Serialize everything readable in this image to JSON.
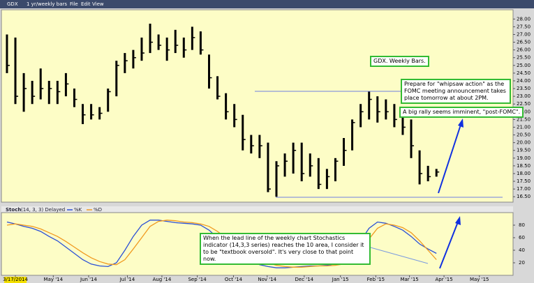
{
  "header": {
    "symbol": "GDX",
    "period": "1 yr/weekly bars",
    "menu": [
      "File",
      "Edit",
      "View"
    ]
  },
  "chart_data": [
    {
      "type": "hlc",
      "color": "#000000",
      "high": [
        27.0,
        26.8,
        24.5,
        24.0,
        24.8,
        24.0,
        24.0,
        24.5,
        23.5,
        22.5,
        22.5,
        22.3,
        23.5,
        25.3,
        25.8,
        26.0,
        26.8,
        27.7,
        27.0,
        26.8,
        27.3,
        26.8,
        27.5,
        27.2,
        25.7,
        24.3,
        23.2,
        22.5,
        21.8,
        20.5,
        20.5,
        20.0,
        18.8,
        19.3,
        20.0,
        20.0,
        19.3,
        19.0,
        18.3,
        19.0,
        20.3,
        21.5,
        22.5,
        23.3,
        23.0,
        22.8,
        22.5,
        22.0,
        21.5,
        19.5,
        18.5,
        18.3
      ],
      "low": [
        24.5,
        22.5,
        22.0,
        22.5,
        22.8,
        22.5,
        22.5,
        23.0,
        22.3,
        21.2,
        21.5,
        21.5,
        22.0,
        23.0,
        24.5,
        24.8,
        25.3,
        25.8,
        26.0,
        25.3,
        25.8,
        25.5,
        26.0,
        25.7,
        23.5,
        22.8,
        21.5,
        21.0,
        19.5,
        19.3,
        19.0,
        16.8,
        16.5,
        17.8,
        18.0,
        17.5,
        17.8,
        17.0,
        17.0,
        17.5,
        18.5,
        19.5,
        21.0,
        21.5,
        21.3,
        21.5,
        21.0,
        20.5,
        19.0,
        17.3,
        17.5,
        17.8
      ],
      "close": [
        25.0,
        23.0,
        23.5,
        23.0,
        23.5,
        23.5,
        23.3,
        23.8,
        22.8,
        21.8,
        21.8,
        21.9,
        23.3,
        25.0,
        25.3,
        25.5,
        25.8,
        26.5,
        26.3,
        26.0,
        26.3,
        26.0,
        26.8,
        26.0,
        24.2,
        23.0,
        22.0,
        21.5,
        20.2,
        19.8,
        19.8,
        17.0,
        18.5,
        18.8,
        19.5,
        18.0,
        18.5,
        17.3,
        17.8,
        18.8,
        19.5,
        21.3,
        22.0,
        22.8,
        22.0,
        22.0,
        21.5,
        21.0,
        19.8,
        18.0,
        17.8,
        18.1
      ],
      "xlim": [
        -0.66,
        60.1
      ],
      "ylim": [
        16.15,
        28.6
      ],
      "yticks": [
        {
          "value": 16.5,
          "label": "16.50"
        },
        {
          "value": 17,
          "label": "17.00"
        },
        {
          "value": 17.5,
          "label": "17.50"
        },
        {
          "value": 18,
          "label": "18.00"
        },
        {
          "value": 18.5,
          "label": "18.50"
        },
        {
          "value": 19,
          "label": "19.00"
        },
        {
          "value": 19.5,
          "label": "19.50"
        },
        {
          "value": 20,
          "label": "20.00"
        },
        {
          "value": 20.5,
          "label": "20.50"
        },
        {
          "value": 21,
          "label": "21.00"
        },
        {
          "value": 21.5,
          "label": "21.50"
        },
        {
          "value": 22,
          "label": "22.00"
        },
        {
          "value": 22.5,
          "label": "22.50"
        },
        {
          "value": 23,
          "label": "23.00"
        },
        {
          "value": 23.5,
          "label": "23.50"
        },
        {
          "value": 24,
          "label": "24.00"
        },
        {
          "value": 24.5,
          "label": "24.50"
        },
        {
          "value": 25,
          "label": "25.00"
        },
        {
          "value": 25.5,
          "label": "25.50"
        },
        {
          "value": 26,
          "label": "26.00"
        },
        {
          "value": 26.5,
          "label": "26.50"
        },
        {
          "value": 27,
          "label": "27.00"
        },
        {
          "value": 27.5,
          "label": "27.50"
        },
        {
          "value": 28,
          "label": "28.00"
        }
      ],
      "annotations": [
        "GDX. Weekly Bars.",
        "Prepare for \"whipsaw action\" as the FOMC meeting announcement takes place tomorrow at about 2PM.",
        "A big rally seems imminent, \"post-FOMC\"."
      ]
    },
    {
      "type": "line",
      "title": "Stoch",
      "subtitle": "(14, 3, 3) Delayed",
      "series": [
        {
          "name": "%K",
          "color": "#2a4fd6",
          "values": [
            85,
            82,
            78,
            75,
            70,
            62,
            55,
            45,
            35,
            25,
            18,
            15,
            14,
            20,
            40,
            62,
            80,
            88,
            88,
            86,
            84,
            83,
            82,
            80,
            72,
            60,
            48,
            38,
            28,
            22,
            17,
            14,
            12,
            12,
            13,
            14,
            15,
            15,
            16,
            18,
            22,
            35,
            55,
            75,
            85,
            83,
            78,
            72,
            62,
            50,
            42,
            35
          ]
        },
        {
          "name": "%D",
          "color": "#f09a20",
          "values": [
            80,
            82,
            80,
            78,
            74,
            68,
            62,
            54,
            45,
            36,
            28,
            22,
            18,
            17,
            25,
            42,
            60,
            78,
            86,
            88,
            87,
            85,
            84,
            82,
            78,
            70,
            60,
            50,
            40,
            32,
            25,
            20,
            16,
            14,
            13,
            13,
            14,
            15,
            15,
            16,
            18,
            25,
            40,
            58,
            75,
            82,
            80,
            76,
            68,
            55,
            40,
            25
          ]
        }
      ],
      "xlim": [
        -0.66,
        60.1
      ],
      "ylim": [
        0,
        100
      ],
      "yticks": [
        20,
        40,
        60,
        80
      ],
      "xticks": [
        {
          "value": 1.0,
          "label": "3/17/2014"
        },
        {
          "value": 5.5,
          "label": "May '14"
        },
        {
          "value": 9.7,
          "label": "Jun '14"
        },
        {
          "value": 14.3,
          "label": "Jul '14"
        },
        {
          "value": 18.4,
          "label": "Aug '14"
        },
        {
          "value": 22.6,
          "label": "Sep '14"
        },
        {
          "value": 26.9,
          "label": "Oct '14"
        },
        {
          "value": 30.9,
          "label": "Nov '14"
        },
        {
          "value": 35.3,
          "label": "Dec '14"
        },
        {
          "value": 39.6,
          "label": "Jan '15"
        },
        {
          "value": 43.8,
          "label": "Feb '15"
        },
        {
          "value": 47.8,
          "label": "Mar '15"
        },
        {
          "value": 51.9,
          "label": "Apr '15"
        },
        {
          "value": 56.1,
          "label": "May '15"
        }
      ],
      "annotations": [
        "When the lead line of the weekly chart Stochastics indicator (14,3,3 series) reaches the 10 area, I consider it to be \"textbook oversold\". It's very close to that point now."
      ]
    }
  ]
}
